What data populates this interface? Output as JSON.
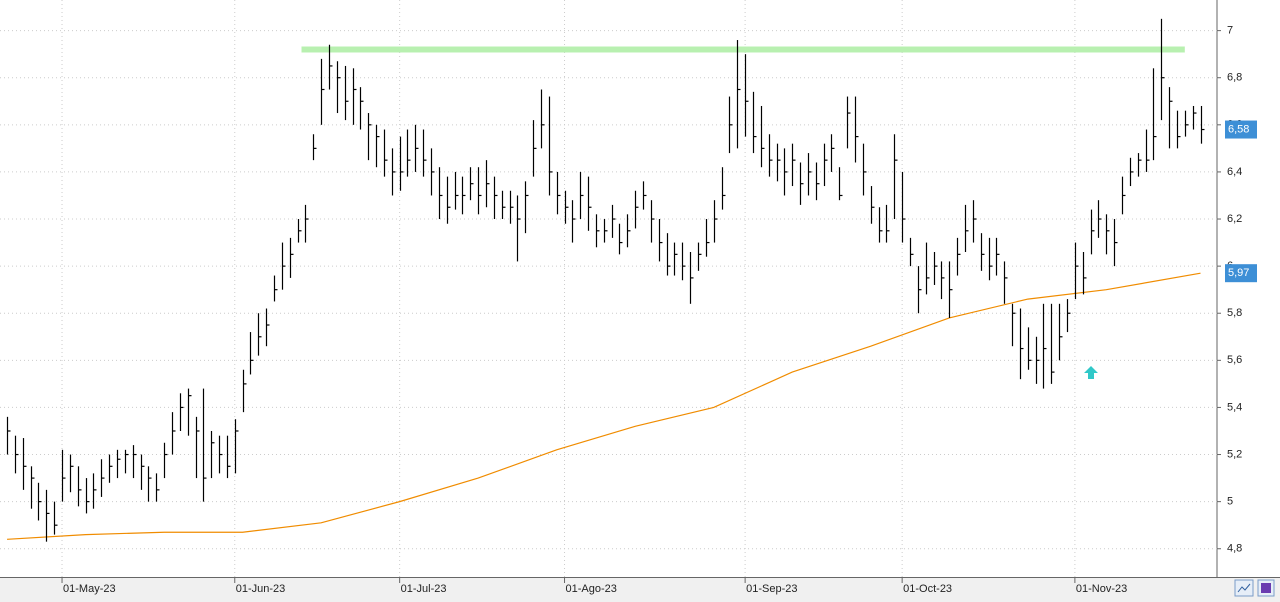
{
  "chart_data": {
    "type": "ohlc",
    "color": "#000000",
    "xlim": [
      -0.9,
      154.1
    ],
    "xticks": [
      {
        "value": 7,
        "label": "01-May-23"
      },
      {
        "value": 29,
        "label": "01-Jun-23"
      },
      {
        "value": 50,
        "label": "01-Jul-23"
      },
      {
        "value": 71,
        "label": "01-Ago-23"
      },
      {
        "value": 94,
        "label": "01-Sep-23"
      },
      {
        "value": 114,
        "label": "01-Oct-23"
      },
      {
        "value": 136,
        "label": "01-Nov-23"
      }
    ],
    "ylim": [
      4.68,
      7.13
    ],
    "yticks": [
      {
        "value": 4.8,
        "label": "4,8"
      },
      {
        "value": 5,
        "label": "5"
      },
      {
        "value": 5.2,
        "label": "5,2"
      },
      {
        "value": 5.4,
        "label": "5,4"
      },
      {
        "value": 5.6,
        "label": "5,6"
      },
      {
        "value": 5.8,
        "label": "5,8"
      },
      {
        "value": 6,
        "label": "6"
      },
      {
        "value": 6.2,
        "label": "6,2"
      },
      {
        "value": 6.4,
        "label": "6,4"
      },
      {
        "value": 6.6,
        "label": "6,6"
      },
      {
        "value": 6.8,
        "label": "6,8"
      },
      {
        "value": 7,
        "label": "7"
      }
    ],
    "grid": true,
    "high": [
      5.36,
      5.28,
      5.27,
      5.15,
      5.08,
      5.05,
      5.0,
      5.22,
      5.2,
      5.15,
      5.1,
      5.12,
      5.18,
      5.2,
      5.22,
      5.22,
      5.24,
      5.2,
      5.15,
      5.12,
      5.25,
      5.38,
      5.46,
      5.48,
      5.36,
      5.48,
      5.3,
      5.28,
      5.28,
      5.35,
      5.56,
      5.72,
      5.8,
      5.82,
      5.96,
      6.1,
      6.12,
      6.2,
      6.26,
      6.56,
      6.88,
      6.94,
      6.87,
      6.85,
      6.84,
      6.76,
      6.65,
      6.6,
      6.58,
      6.5,
      6.55,
      6.58,
      6.6,
      6.58,
      6.5,
      6.42,
      6.38,
      6.4,
      6.38,
      6.42,
      6.42,
      6.45,
      6.38,
      6.32,
      6.32,
      6.3,
      6.36,
      6.62,
      6.75,
      6.72,
      6.4,
      6.32,
      6.28,
      6.4,
      6.38,
      6.22,
      6.2,
      6.26,
      6.18,
      6.22,
      6.32,
      6.36,
      6.28,
      6.2,
      6.14,
      6.1,
      6.1,
      6.06,
      6.1,
      6.2,
      6.28,
      6.42,
      6.72,
      6.96,
      6.9,
      6.74,
      6.68,
      6.56,
      6.52,
      6.5,
      6.52,
      6.44,
      6.48,
      6.44,
      6.52,
      6.56,
      6.42,
      6.72,
      6.72,
      6.52,
      6.34,
      6.25,
      6.26,
      6.56,
      6.4,
      6.12,
      6.0,
      6.1,
      6.06,
      6.02,
      6.02,
      6.12,
      6.26,
      6.28,
      6.14,
      6.12,
      6.12,
      6.02,
      5.84,
      5.82,
      5.74,
      5.7,
      5.84,
      5.84,
      5.84,
      5.86,
      6.1,
      6.06,
      6.24,
      6.28,
      6.22,
      6.2,
      6.38,
      6.46,
      6.48,
      6.58,
      6.84,
      7.05,
      6.76,
      6.66,
      6.66,
      6.68,
      6.68
    ],
    "low": [
      5.2,
      5.12,
      5.05,
      4.97,
      4.92,
      4.83,
      4.86,
      5.0,
      5.04,
      4.98,
      4.95,
      4.97,
      5.02,
      5.08,
      5.1,
      5.12,
      5.1,
      5.05,
      5.0,
      5.0,
      5.1,
      5.2,
      5.3,
      5.28,
      5.1,
      5.0,
      5.1,
      5.12,
      5.1,
      5.12,
      5.38,
      5.54,
      5.62,
      5.66,
      5.85,
      5.9,
      5.95,
      6.1,
      6.1,
      6.45,
      6.6,
      6.75,
      6.65,
      6.62,
      6.6,
      6.58,
      6.45,
      6.42,
      6.38,
      6.3,
      6.32,
      6.38,
      6.4,
      6.38,
      6.3,
      6.2,
      6.18,
      6.24,
      6.22,
      6.28,
      6.22,
      6.25,
      6.2,
      6.2,
      6.18,
      6.02,
      6.14,
      6.38,
      6.5,
      6.3,
      6.22,
      6.18,
      6.1,
      6.2,
      6.15,
      6.08,
      6.1,
      6.12,
      6.05,
      6.08,
      6.16,
      6.24,
      6.1,
      6.02,
      5.96,
      5.96,
      5.94,
      5.84,
      5.98,
      6.04,
      6.1,
      6.24,
      6.48,
      6.5,
      6.55,
      6.48,
      6.42,
      6.38,
      6.36,
      6.3,
      6.34,
      6.26,
      6.3,
      6.28,
      6.34,
      6.4,
      6.28,
      6.5,
      6.44,
      6.3,
      6.18,
      6.1,
      6.1,
      6.2,
      6.1,
      6.0,
      5.8,
      5.88,
      5.92,
      5.86,
      5.78,
      5.96,
      6.06,
      6.1,
      5.98,
      5.94,
      5.96,
      5.84,
      5.66,
      5.52,
      5.56,
      5.5,
      5.48,
      5.5,
      5.6,
      5.72,
      5.86,
      5.88,
      6.05,
      6.12,
      6.05,
      6.0,
      6.22,
      6.34,
      6.38,
      6.4,
      6.45,
      6.62,
      6.5,
      6.5,
      6.55,
      6.58,
      6.52
    ],
    "close": [
      5.3,
      5.2,
      5.15,
      5.1,
      5.0,
      4.95,
      4.9,
      5.1,
      5.15,
      5.05,
      5.0,
      5.05,
      5.1,
      5.15,
      5.18,
      5.2,
      5.2,
      5.15,
      5.1,
      5.05,
      5.2,
      5.3,
      5.4,
      5.45,
      5.3,
      5.1,
      5.25,
      5.2,
      5.15,
      5.3,
      5.5,
      5.6,
      5.7,
      5.75,
      5.9,
      6.0,
      6.05,
      6.15,
      6.2,
      6.5,
      6.75,
      6.85,
      6.8,
      6.7,
      6.75,
      6.7,
      6.6,
      6.55,
      6.45,
      6.4,
      6.4,
      6.45,
      6.5,
      6.45,
      6.4,
      6.3,
      6.25,
      6.3,
      6.3,
      6.35,
      6.3,
      6.35,
      6.3,
      6.25,
      6.25,
      6.2,
      6.3,
      6.5,
      6.6,
      6.4,
      6.3,
      6.25,
      6.2,
      6.3,
      6.25,
      6.15,
      6.15,
      6.2,
      6.1,
      6.15,
      6.25,
      6.3,
      6.2,
      6.1,
      6.0,
      6.05,
      6.0,
      5.95,
      6.05,
      6.1,
      6.2,
      6.3,
      6.6,
      6.75,
      6.7,
      6.55,
      6.5,
      6.45,
      6.45,
      6.4,
      6.45,
      6.35,
      6.4,
      6.35,
      6.45,
      6.5,
      6.3,
      6.65,
      6.55,
      6.4,
      6.25,
      6.15,
      6.15,
      6.45,
      6.2,
      6.05,
      5.9,
      5.95,
      6.0,
      5.95,
      5.9,
      6.05,
      6.15,
      6.2,
      6.05,
      6.0,
      6.05,
      5.95,
      5.8,
      5.65,
      5.6,
      5.6,
      5.65,
      5.55,
      5.7,
      5.8,
      6.0,
      5.95,
      6.15,
      6.2,
      6.15,
      6.1,
      6.3,
      6.4,
      6.45,
      6.45,
      6.55,
      6.8,
      6.7,
      6.55,
      6.6,
      6.65,
      6.58
    ],
    "moving_average": {
      "color": "#f08c00",
      "x": [
        0,
        10,
        20,
        30,
        40,
        50,
        60,
        70,
        80,
        90,
        100,
        110,
        120,
        130,
        140,
        152
      ],
      "values": [
        4.84,
        4.86,
        4.87,
        4.87,
        4.91,
        5.0,
        5.1,
        5.22,
        5.32,
        5.4,
        5.55,
        5.66,
        5.78,
        5.86,
        5.9,
        5.97
      ]
    },
    "resistance": {
      "value": 6.92,
      "from": 37.5,
      "to": 150,
      "color": "#b8f0b0"
    },
    "price_labels": [
      {
        "value": 6.58,
        "label": "6,58"
      },
      {
        "value": 5.97,
        "label": "5,97"
      }
    ],
    "price_label_color": "#3d8fd6"
  }
}
